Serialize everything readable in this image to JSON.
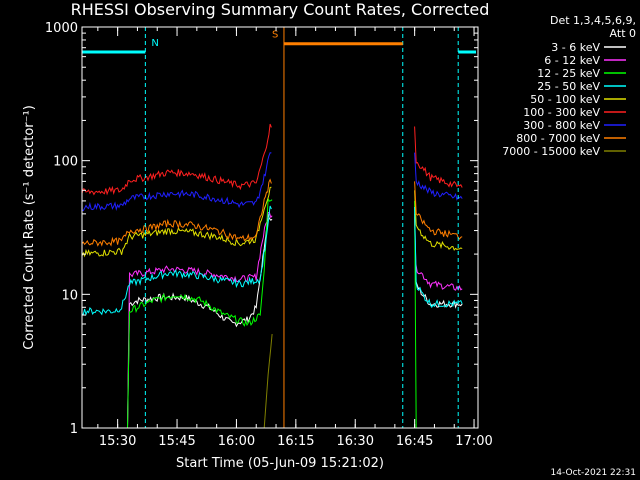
{
  "chart_data": {
    "type": "line",
    "title": "RHESSI Observing Summary Count Rates, Corrected",
    "xlabel": "Start Time (05-Jun-09 15:21:02)",
    "ylabel": "Corrected Count Rate (s⁻¹ detector⁻¹)",
    "yscale": "log",
    "ylim": [
      1,
      1000
    ],
    "xlim_minutes": [
      0,
      100
    ],
    "x_ticks": [
      {
        "t": 9,
        "label": "15:30"
      },
      {
        "t": 24,
        "label": "15:45"
      },
      {
        "t": 39,
        "label": "16:00"
      },
      {
        "t": 54,
        "label": "16:15"
      },
      {
        "t": 69,
        "label": "16:30"
      },
      {
        "t": 84,
        "label": "16:45"
      },
      {
        "t": 99,
        "label": "17:00"
      }
    ],
    "y_ticks": [
      {
        "v": 1,
        "label": "1"
      },
      {
        "v": 10,
        "label": "10"
      },
      {
        "v": 100,
        "label": "100"
      },
      {
        "v": 1000,
        "label": "1000"
      }
    ],
    "legend_header": [
      "Det 1,3,4,5,6,9,",
      "Att 0"
    ],
    "series": [
      {
        "name": "3 - 6 keV",
        "color": "#ffffff",
        "points": [
          [
            0,
            1
          ],
          [
            11.5,
            1
          ],
          [
            12,
            8.5
          ],
          [
            14,
            9
          ],
          [
            20,
            9.5
          ],
          [
            26,
            9.5
          ],
          [
            32,
            8
          ],
          [
            38,
            6
          ],
          [
            42,
            6.5
          ],
          [
            44,
            8
          ],
          [
            46,
            22
          ],
          [
            47,
            38
          ],
          [
            84,
            38
          ],
          [
            84.3,
            12
          ],
          [
            86,
            10
          ],
          [
            88,
            8.5
          ],
          [
            96,
            8.5
          ]
        ]
      },
      {
        "name": "6 - 12 keV",
        "color": "#ff33ff",
        "points": [
          [
            0,
            1
          ],
          [
            11.5,
            1
          ],
          [
            12,
            14
          ],
          [
            16,
            14.5
          ],
          [
            22,
            15.5
          ],
          [
            28,
            15
          ],
          [
            34,
            14
          ],
          [
            40,
            13
          ],
          [
            44,
            13.5
          ],
          [
            45.5,
            25
          ],
          [
            47,
            40
          ],
          [
            84,
            40
          ],
          [
            84.3,
            16
          ],
          [
            86,
            14
          ],
          [
            88,
            12
          ],
          [
            96,
            11
          ]
        ]
      },
      {
        "name": "12 - 25 keV",
        "color": "#00ff00",
        "points": [
          [
            0,
            1
          ],
          [
            11.5,
            1
          ],
          [
            12,
            7.5
          ],
          [
            14,
            8
          ],
          [
            18,
            9
          ],
          [
            24,
            10
          ],
          [
            30,
            9
          ],
          [
            36,
            7
          ],
          [
            42,
            6
          ],
          [
            45,
            7
          ],
          [
            46,
            15
          ],
          [
            47,
            50
          ],
          [
            84,
            50
          ],
          [
            84.4,
            1
          ],
          [
            96,
            1
          ]
        ]
      },
      {
        "name": "25 - 50 keV",
        "color": "#00ffff",
        "points": [
          [
            0,
            7.5
          ],
          [
            8,
            7.5
          ],
          [
            10,
            8
          ],
          [
            12,
            12
          ],
          [
            16,
            13
          ],
          [
            22,
            14.5
          ],
          [
            28,
            14
          ],
          [
            34,
            13
          ],
          [
            40,
            12
          ],
          [
            45,
            13
          ],
          [
            46.5,
            26
          ],
          [
            47.5,
            45
          ],
          [
            84,
            45
          ],
          [
            84.4,
            12
          ],
          [
            86,
            10
          ],
          [
            88,
            8.5
          ],
          [
            96,
            8.5
          ]
        ]
      },
      {
        "name": "50 - 100 keV",
        "color": "#e0e000",
        "points": [
          [
            0,
            20
          ],
          [
            10,
            21
          ],
          [
            12,
            27
          ],
          [
            16,
            28
          ],
          [
            22,
            30
          ],
          [
            28,
            29
          ],
          [
            34,
            27
          ],
          [
            40,
            24
          ],
          [
            44,
            26
          ],
          [
            46,
            45
          ],
          [
            47.5,
            60
          ],
          [
            84,
            60
          ],
          [
            84.4,
            33
          ],
          [
            86,
            28
          ],
          [
            88,
            24
          ],
          [
            96,
            22
          ]
        ]
      },
      {
        "name": "100 - 300 keV",
        "color": "#ff2020",
        "points": [
          [
            0,
            58
          ],
          [
            10,
            60
          ],
          [
            12,
            72
          ],
          [
            16,
            75
          ],
          [
            22,
            82
          ],
          [
            28,
            80
          ],
          [
            34,
            72
          ],
          [
            40,
            65
          ],
          [
            44,
            68
          ],
          [
            46,
            110
          ],
          [
            47.5,
            180
          ],
          [
            84,
            180
          ],
          [
            84.4,
            100
          ],
          [
            86,
            88
          ],
          [
            88,
            75
          ],
          [
            96,
            63
          ]
        ]
      },
      {
        "name": "300 - 800 keV",
        "color": "#2020ff",
        "points": [
          [
            0,
            45
          ],
          [
            10,
            46
          ],
          [
            12,
            52
          ],
          [
            16,
            54
          ],
          [
            22,
            57
          ],
          [
            28,
            56
          ],
          [
            34,
            52
          ],
          [
            40,
            47
          ],
          [
            44,
            48
          ],
          [
            46,
            75
          ],
          [
            47.5,
            115
          ],
          [
            84,
            115
          ],
          [
            84.4,
            70
          ],
          [
            86,
            64
          ],
          [
            88,
            58
          ],
          [
            96,
            52
          ]
        ]
      },
      {
        "name": "800 - 7000 keV",
        "color": "#ff7f00",
        "points": [
          [
            0,
            24
          ],
          [
            10,
            25
          ],
          [
            12,
            30
          ],
          [
            16,
            31
          ],
          [
            22,
            34
          ],
          [
            28,
            33
          ],
          [
            34,
            30
          ],
          [
            40,
            26
          ],
          [
            44,
            27
          ],
          [
            46,
            50
          ],
          [
            47.5,
            70
          ],
          [
            84,
            70
          ],
          [
            84.4,
            40
          ],
          [
            86,
            35
          ],
          [
            88,
            30
          ],
          [
            96,
            27
          ]
        ]
      },
      {
        "name": "7000 - 15000 keV",
        "color": "#808000",
        "points": [
          [
            0,
            1
          ],
          [
            46,
            1
          ],
          [
            47,
            2.5
          ],
          [
            48,
            5
          ],
          [
            84,
            5
          ]
        ]
      }
    ],
    "flag_bars": [
      {
        "label": "N",
        "color": "#00ffff",
        "y": 650,
        "ranges": [
          [
            0,
            16
          ],
          [
            95,
            99.5
          ]
        ]
      },
      {
        "label": "S",
        "color": "#ff7f00",
        "y": 750,
        "ranges": [
          [
            51,
            81
          ]
        ]
      }
    ],
    "vlines": [
      {
        "t": 16,
        "color": "#00ffff",
        "dashed": true
      },
      {
        "t": 51,
        "color": "#ff7f00",
        "dashed": false
      },
      {
        "t": 81,
        "color": "#00ffff",
        "dashed": true
      },
      {
        "t": 95,
        "color": "#00ffff",
        "dashed": true
      }
    ],
    "timestamp": "14-Oct-2021 22:31"
  }
}
